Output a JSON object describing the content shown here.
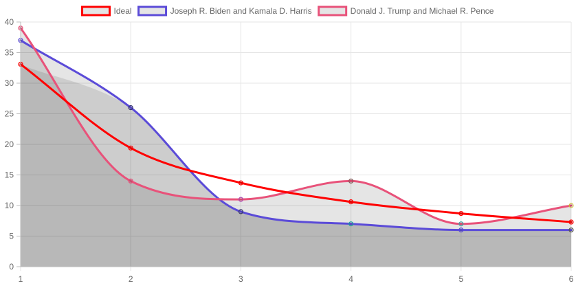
{
  "chart_data": {
    "type": "line",
    "x": [
      1,
      2,
      3,
      4,
      5,
      6
    ],
    "xlim": [
      1,
      6
    ],
    "ylim": [
      0,
      40
    ],
    "x_ticks": [
      1,
      2,
      3,
      4,
      5,
      6
    ],
    "y_ticks": [
      0,
      5,
      10,
      15,
      20,
      25,
      30,
      35,
      40
    ],
    "grid": true,
    "legend_position": "top",
    "curve": "smooth",
    "series": [
      {
        "name": "Ideal",
        "values": [
          33.1,
          19.4,
          13.7,
          10.6,
          8.7,
          7.3
        ],
        "color": "#ff0000",
        "fill": false
      },
      {
        "name": "Joseph R. Biden and Kamala D. Harris",
        "values": [
          37,
          26,
          9,
          7,
          6,
          6
        ],
        "color": "#5b4bd8",
        "fill": true,
        "fill_color": "rgba(0,0,0,0.1)"
      },
      {
        "name": "Donald J. Trump and Michael R. Pence",
        "values": [
          39,
          14,
          11,
          14,
          7,
          10
        ],
        "color": "#e8527a",
        "fill": true,
        "fill_color": "rgba(0,0,0,0.1)"
      }
    ],
    "shaded_area": {
      "values": [
        33,
        26,
        9,
        7,
        6,
        6
      ],
      "fill_color": "rgba(0,0,0,0.1)"
    },
    "point_colors": {
      "Joseph R. Biden and Kamala D. Harris": [
        "#5b4bd8",
        "#2f2f6f",
        "#3b3b6b",
        "#1aa7a0",
        "#5b4bd8",
        "#555555"
      ],
      "Donald J. Trump and Michael R. Pence": [
        "#e8527a",
        "#e8527a",
        "#b04ab0",
        "#8a5a5a",
        "#3fa8a8",
        "#d0c040"
      ]
    }
  }
}
